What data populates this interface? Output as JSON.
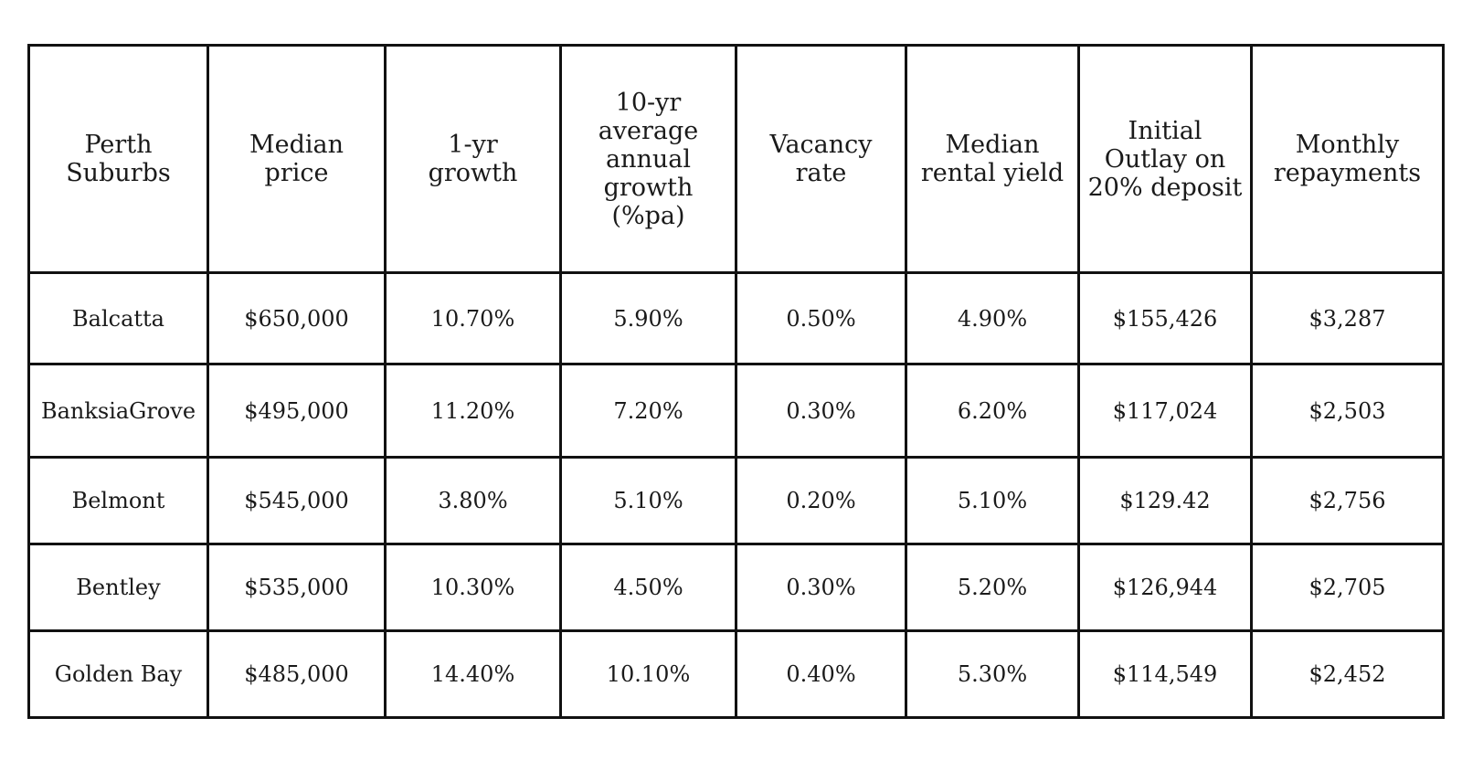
{
  "table": {
    "headers": [
      [
        "Perth",
        "Suburbs"
      ],
      [
        "Median price"
      ],
      [
        "1-yr",
        "growth"
      ],
      [
        "10-yr",
        "average",
        "annual",
        "growth",
        "(%pa)"
      ],
      [
        "Vacancy",
        "rate"
      ],
      [
        "Median",
        "rental yield"
      ],
      [
        "Initial",
        "Outlay on",
        "20% deposit"
      ],
      [
        "Monthly",
        "repayments"
      ]
    ],
    "rows": [
      [
        "Balcatta",
        "$650,000",
        "10.70%",
        "5.90%",
        "0.50%",
        "4.90%",
        "$155,426",
        "$3,287"
      ],
      [
        "BanksiaGrove",
        "$495,000",
        "11.20%",
        "7.20%",
        "0.30%",
        "6.20%",
        "$117,024",
        "$2,503"
      ],
      [
        "Belmont",
        "$545,000",
        "3.80%",
        "5.10%",
        "0.20%",
        "5.10%",
        "$129.42",
        "$2,756"
      ],
      [
        "Bentley",
        "$535,000",
        "10.30%",
        "4.50%",
        "0.30%",
        "5.20%",
        "$126,944",
        "$2,705"
      ],
      [
        "Golden Bay",
        "$485,000",
        "14.40%",
        "10.10%",
        "0.40%",
        "5.30%",
        "$114,549",
        "$2,452"
      ]
    ]
  }
}
